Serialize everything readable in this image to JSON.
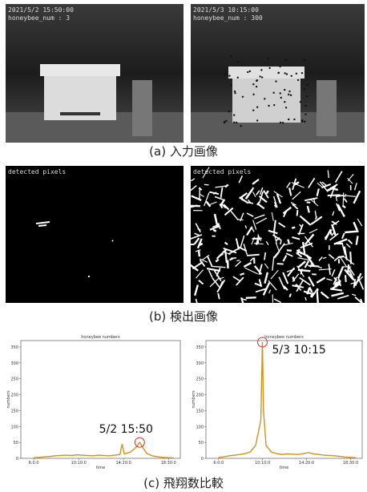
{
  "panels": {
    "a": {
      "caption": "(a) 入力画像",
      "left": {
        "stamp": "2021/5/2 15:50:00",
        "count": "honeybee_num : 3"
      },
      "right": {
        "stamp": "2021/5/3 10:15:00",
        "count": "honeybee_num : 300"
      }
    },
    "b": {
      "caption": "(b) 検出画像",
      "left": {
        "label": "detected pixels"
      },
      "right": {
        "label": "detected pixels"
      }
    },
    "c": {
      "caption": "(c) 飛翔数比較"
    }
  },
  "chart_data": [
    {
      "type": "line",
      "title": "honeybee numbers",
      "xlabel": "time",
      "ylabel": "numbers",
      "x": [
        6,
        6.5,
        7,
        7.5,
        8,
        8.5,
        9,
        9.5,
        10,
        10.5,
        11,
        11.5,
        12,
        12.5,
        13,
        13.5,
        14,
        14.2,
        14.4,
        15,
        15.5,
        15.83,
        16.2,
        16.5,
        17,
        17.5,
        18,
        18.5,
        19
      ],
      "series": [
        {
          "name": "honeybee numbers",
          "color": "#d4901c",
          "values": [
            2,
            3,
            5,
            6,
            8,
            9,
            10,
            9,
            11,
            10,
            9,
            8,
            10,
            9,
            8,
            10,
            12,
            45,
            14,
            20,
            35,
            50,
            30,
            15,
            8,
            5,
            3,
            2,
            1
          ]
        }
      ],
      "xlim": [
        4.8,
        19.6
      ],
      "ylim": [
        0,
        370
      ],
      "xticks": [
        {
          "value": 6,
          "label": "6:0:0"
        },
        {
          "value": 10.17,
          "label": "10:10:0"
        },
        {
          "value": 14.33,
          "label": "14:20:0"
        },
        {
          "value": 18.5,
          "label": "18:30:0"
        }
      ],
      "yticks": [
        0,
        50,
        100,
        150,
        200,
        250,
        300,
        350
      ],
      "annotation": "5/2 15:50"
    },
    {
      "type": "line",
      "title": "honeybee numbers",
      "xlabel": "time",
      "ylabel": "numbers",
      "x": [
        6,
        6.5,
        7,
        7.5,
        8,
        8.5,
        9,
        9.5,
        10,
        10.15,
        10.25,
        10.5,
        11,
        11.5,
        12,
        12.5,
        13,
        13.5,
        14,
        14.5,
        15,
        15.5,
        16,
        16.5,
        17,
        17.5,
        18,
        18.5,
        19
      ],
      "series": [
        {
          "name": "honeybee numbers",
          "color": "#d4901c",
          "values": [
            3,
            5,
            8,
            10,
            12,
            15,
            20,
            40,
            120,
            365,
            150,
            40,
            20,
            15,
            12,
            14,
            13,
            12,
            15,
            18,
            14,
            12,
            10,
            9,
            8,
            6,
            4,
            3,
            2
          ]
        }
      ],
      "xlim": [
        4.8,
        19.6
      ],
      "ylim": [
        0,
        370
      ],
      "xticks": [
        {
          "value": 6,
          "label": "6:0:0"
        },
        {
          "value": 10.17,
          "label": "10:10:0"
        },
        {
          "value": 14.33,
          "label": "14:20:0"
        },
        {
          "value": 18.5,
          "label": "18:30:0"
        }
      ],
      "yticks": [
        0,
        50,
        100,
        150,
        200,
        250,
        300,
        350
      ],
      "annotation": "5/3 10:15"
    }
  ]
}
